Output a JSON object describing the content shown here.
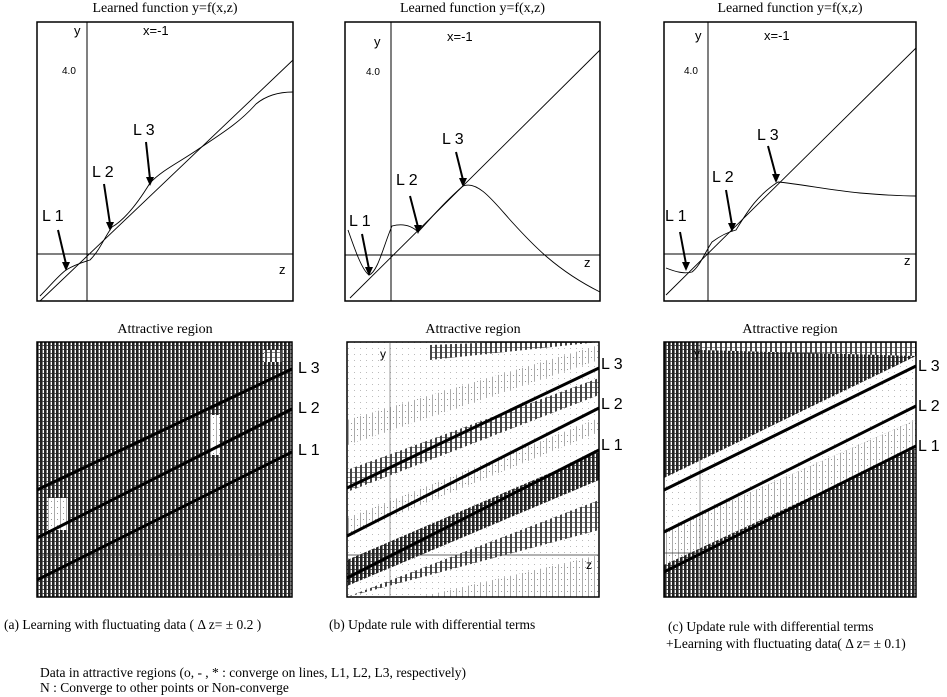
{
  "function_panels": [
    {
      "id": "a",
      "title": "Learned function y=f(x,z)",
      "y_axis": "y",
      "x_axis": "z",
      "x_condition": "x=-1",
      "y_tick": "4.0",
      "line_labels": [
        "L 1",
        "L 2",
        "L 3"
      ]
    },
    {
      "id": "b",
      "title": "Learned function y=f(x,z)",
      "y_axis": "y",
      "x_axis": "z",
      "x_condition": "x=-1",
      "y_tick": "4.0",
      "line_labels": [
        "L 1",
        "L 2",
        "L 3"
      ]
    },
    {
      "id": "c",
      "title": "Learned function y=f(x,z)",
      "y_axis": "y",
      "x_axis": "z",
      "x_condition": "x=-1",
      "y_tick": "4.0",
      "line_labels": [
        "L 1",
        "L 2",
        "L 3"
      ]
    }
  ],
  "region_panels": [
    {
      "id": "a",
      "title": "Attractive region",
      "line_labels": [
        "L 3",
        "L 2",
        "L 1"
      ]
    },
    {
      "id": "b",
      "title": "Attractive region",
      "y_axis": "y",
      "x_axis": "z",
      "line_labels": [
        "L 3",
        "L 2",
        "L 1"
      ]
    },
    {
      "id": "c",
      "title": "Attractive region",
      "y_axis": "y",
      "line_labels": [
        "L 3",
        "L 2",
        "L 1"
      ]
    }
  ],
  "captions": {
    "a": "(a) Learning with  fluctuating data ( Δ z= ± 0.2 )",
    "b": "(b) Update rule with differential terms",
    "c_line1": "(c)      Update rule with differential terms",
    "c_line2": "+Learning with  fluctuating data( Δ z= ± 0.1)"
  },
  "legend": {
    "line1": "Data in attractive regions (o, - , * : converge on lines, L1, L2, L3, respectively)",
    "line2": "N : Converge to other points or Non-converge"
  }
}
